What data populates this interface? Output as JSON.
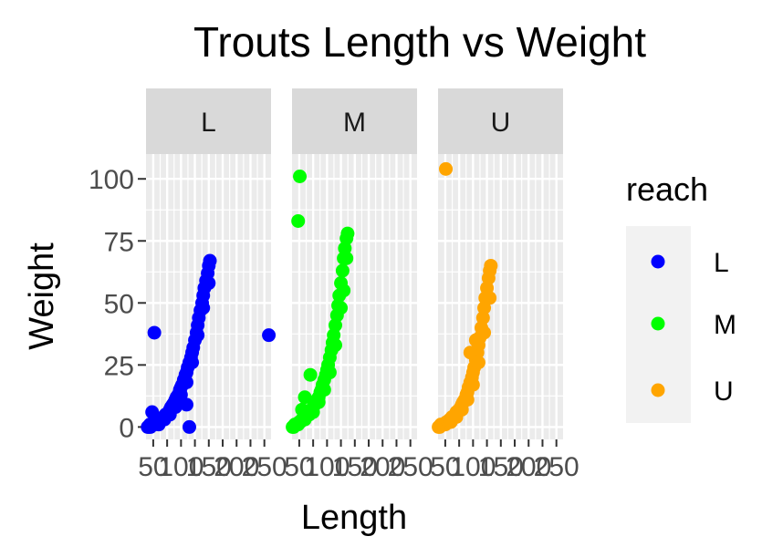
{
  "chart_data": {
    "type": "scatter",
    "title": "Trouts Length vs Weight",
    "xlabel": "Length",
    "ylabel": "Weight",
    "xlim": [
      37,
      262
    ],
    "ylim": [
      -5,
      110
    ],
    "x_ticks": [
      50,
      75,
      100,
      125,
      150,
      175,
      200,
      225,
      250
    ],
    "x_tick_labels": [
      "50",
      "",
      "100",
      "",
      "150",
      "",
      "200",
      "",
      "250"
    ],
    "y_ticks": [
      0,
      25,
      50,
      75,
      100
    ],
    "y_tick_labels": [
      "0",
      "25",
      "50",
      "75",
      "100"
    ],
    "grid": true,
    "facet_variable": "reach",
    "facets": [
      "L",
      "M",
      "U"
    ],
    "legend": {
      "title": "reach",
      "position": "right",
      "entries": [
        {
          "label": "L",
          "color": "#0000FF"
        },
        {
          "label": "M",
          "color": "#00FF00"
        },
        {
          "label": "U",
          "color": "#FFA500"
        }
      ]
    },
    "series": [
      {
        "name": "L",
        "color": "#0000FF",
        "points": [
          [
            40,
            0
          ],
          [
            42,
            0
          ],
          [
            44,
            1
          ],
          [
            45,
            0
          ],
          [
            47,
            1
          ],
          [
            48,
            6
          ],
          [
            50,
            1
          ],
          [
            52,
            1
          ],
          [
            55,
            2
          ],
          [
            58,
            2
          ],
          [
            60,
            2
          ],
          [
            62,
            3
          ],
          [
            65,
            3
          ],
          [
            68,
            4
          ],
          [
            70,
            4
          ],
          [
            72,
            5
          ],
          [
            75,
            5
          ],
          [
            78,
            6
          ],
          [
            80,
            7
          ],
          [
            82,
            8
          ],
          [
            85,
            9
          ],
          [
            88,
            10
          ],
          [
            90,
            11
          ],
          [
            92,
            12
          ],
          [
            95,
            13
          ],
          [
            98,
            15
          ],
          [
            100,
            16
          ],
          [
            102,
            17
          ],
          [
            105,
            19
          ],
          [
            108,
            21
          ],
          [
            110,
            22
          ],
          [
            112,
            24
          ],
          [
            115,
            26
          ],
          [
            118,
            28
          ],
          [
            120,
            30
          ],
          [
            122,
            32
          ],
          [
            125,
            35
          ],
          [
            128,
            38
          ],
          [
            130,
            41
          ],
          [
            132,
            44
          ],
          [
            135,
            47
          ],
          [
            138,
            50
          ],
          [
            140,
            53
          ],
          [
            142,
            56
          ],
          [
            145,
            59
          ],
          [
            148,
            62
          ],
          [
            150,
            65
          ],
          [
            152,
            67
          ],
          [
            52,
            38
          ],
          [
            115,
            0
          ],
          [
            110,
            9
          ],
          [
            258,
            37
          ],
          [
            60,
            1
          ],
          [
            70,
            3
          ],
          [
            80,
            5
          ],
          [
            90,
            8
          ],
          [
            100,
            13
          ],
          [
            110,
            18
          ],
          [
            120,
            26
          ],
          [
            130,
            37
          ],
          [
            140,
            48
          ],
          [
            150,
            58
          ]
        ]
      },
      {
        "name": "M",
        "color": "#00FF00",
        "points": [
          [
            38,
            0
          ],
          [
            40,
            0
          ],
          [
            42,
            1
          ],
          [
            45,
            1
          ],
          [
            48,
            1
          ],
          [
            50,
            2
          ],
          [
            52,
            2
          ],
          [
            55,
            3
          ],
          [
            58,
            3
          ],
          [
            60,
            3
          ],
          [
            62,
            4
          ],
          [
            65,
            5
          ],
          [
            68,
            5
          ],
          [
            70,
            6
          ],
          [
            72,
            7
          ],
          [
            75,
            8
          ],
          [
            78,
            9
          ],
          [
            80,
            10
          ],
          [
            82,
            11
          ],
          [
            85,
            12
          ],
          [
            88,
            14
          ],
          [
            90,
            15
          ],
          [
            92,
            17
          ],
          [
            95,
            19
          ],
          [
            98,
            21
          ],
          [
            100,
            23
          ],
          [
            102,
            25
          ],
          [
            105,
            28
          ],
          [
            108,
            31
          ],
          [
            110,
            34
          ],
          [
            112,
            37
          ],
          [
            115,
            41
          ],
          [
            118,
            45
          ],
          [
            120,
            49
          ],
          [
            122,
            53
          ],
          [
            125,
            58
          ],
          [
            128,
            63
          ],
          [
            130,
            68
          ],
          [
            132,
            72
          ],
          [
            135,
            76
          ],
          [
            137,
            78
          ],
          [
            51,
            101
          ],
          [
            48,
            83
          ],
          [
            70,
            21
          ],
          [
            55,
            7
          ],
          [
            60,
            12
          ],
          [
            65,
            5
          ],
          [
            75,
            6
          ],
          [
            85,
            10
          ],
          [
            95,
            15
          ],
          [
            105,
            22
          ],
          [
            115,
            33
          ],
          [
            125,
            48
          ],
          [
            130,
            55
          ],
          [
            135,
            68
          ]
        ]
      },
      {
        "name": "U",
        "color": "#FFA500",
        "points": [
          [
            38,
            0
          ],
          [
            40,
            0
          ],
          [
            42,
            1
          ],
          [
            45,
            1
          ],
          [
            48,
            1
          ],
          [
            50,
            1
          ],
          [
            52,
            2
          ],
          [
            55,
            2
          ],
          [
            58,
            3
          ],
          [
            60,
            3
          ],
          [
            62,
            4
          ],
          [
            65,
            4
          ],
          [
            68,
            5
          ],
          [
            70,
            6
          ],
          [
            72,
            6
          ],
          [
            75,
            7
          ],
          [
            78,
            8
          ],
          [
            80,
            9
          ],
          [
            82,
            10
          ],
          [
            85,
            11
          ],
          [
            88,
            13
          ],
          [
            90,
            14
          ],
          [
            92,
            16
          ],
          [
            95,
            18
          ],
          [
            98,
            20
          ],
          [
            100,
            22
          ],
          [
            102,
            24
          ],
          [
            105,
            27
          ],
          [
            108,
            30
          ],
          [
            110,
            33
          ],
          [
            112,
            36
          ],
          [
            115,
            40
          ],
          [
            118,
            44
          ],
          [
            120,
            48
          ],
          [
            122,
            52
          ],
          [
            125,
            56
          ],
          [
            128,
            60
          ],
          [
            130,
            63
          ],
          [
            132,
            65
          ],
          [
            51,
            104
          ],
          [
            95,
            30
          ],
          [
            105,
            35
          ],
          [
            60,
            2
          ],
          [
            70,
            4
          ],
          [
            80,
            7
          ],
          [
            90,
            11
          ],
          [
            100,
            17
          ],
          [
            110,
            26
          ],
          [
            120,
            38
          ],
          [
            130,
            52
          ]
        ]
      }
    ]
  }
}
